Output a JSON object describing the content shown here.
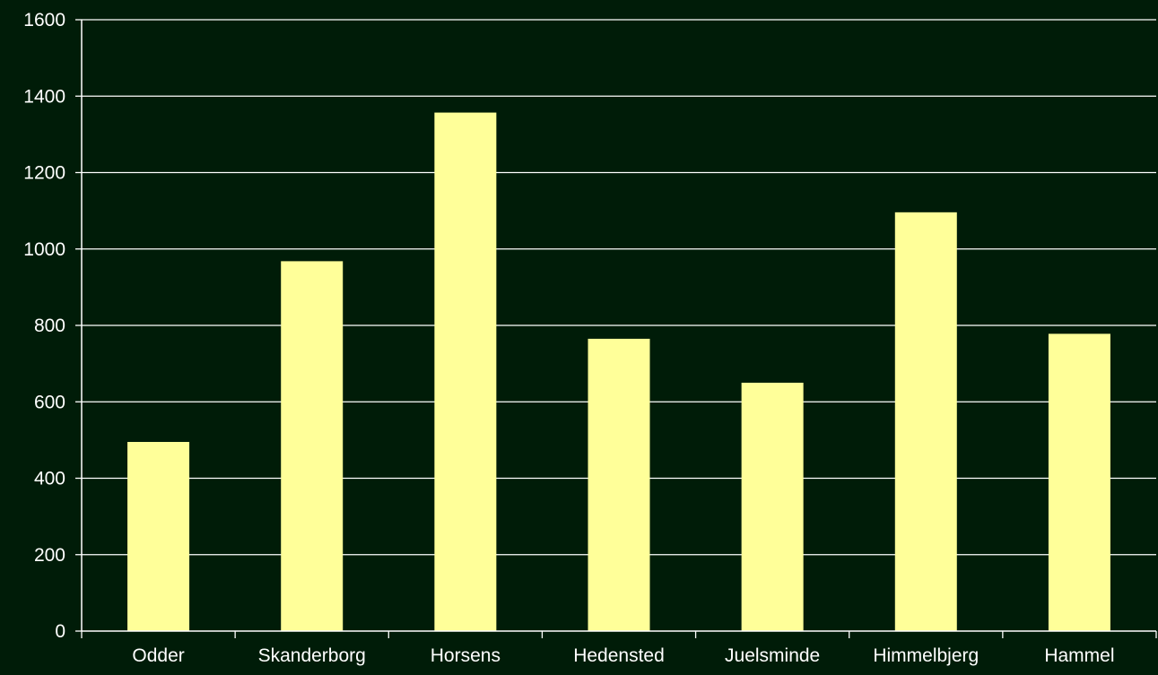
{
  "colors": {
    "background": "#001c08",
    "bar": "#ffff99",
    "axis": "#ffffff",
    "grid": "#ffffff",
    "text": "#ffffff"
  },
  "chart_data": {
    "type": "bar",
    "title": "",
    "xlabel": "",
    "ylabel": "",
    "categories": [
      "Odder",
      "Skanderborg",
      "Horsens",
      "Hedensted",
      "Juelsminde",
      "Himmelbjerg",
      "Hammel"
    ],
    "values": [
      495,
      968,
      1357,
      765,
      650,
      1096,
      778
    ],
    "ylim": [
      0,
      1600
    ],
    "yticks": [
      0,
      200,
      400,
      600,
      800,
      1000,
      1200,
      1400,
      1600
    ],
    "ytick_labels": [
      "0",
      "200",
      "400",
      "600",
      "800",
      "1000",
      "1200",
      "1400",
      "1600"
    ],
    "grid": true,
    "legend": "none"
  }
}
